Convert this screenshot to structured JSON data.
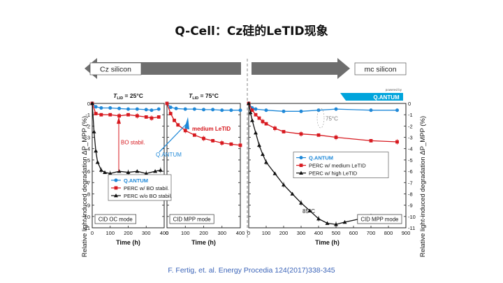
{
  "slide": {
    "title": "Q-Cell：Cz硅的LeTID现象",
    "citation": "F. Fertig, et. al. Energy Procedia 124(2017)338-345"
  },
  "figure": {
    "arrow_left_label": "Cz silicon",
    "arrow_right_label": "mc silicon",
    "logo": {
      "top_text": "powered by",
      "brand": "Q.ANTUM"
    },
    "ylabel": "Relative light-induced degradation ΔP_MPP (%)",
    "colors": {
      "qantum": "#1e88d8",
      "perc": "#d7191f",
      "black": "#111111",
      "arrow_gray": "#6e6e6e"
    }
  },
  "chart_data": [
    {
      "type": "line",
      "panel": "left",
      "condition_label": "T_LID = 25°C",
      "mode_label": "CID OC mode",
      "xlabel": "Time (h)",
      "xlim": [
        0,
        400
      ],
      "ylim": [
        -11,
        0
      ],
      "xticks": [
        0,
        100,
        200,
        300,
        400
      ],
      "yticks": [
        0,
        -1,
        -2,
        -3,
        -4,
        -5,
        -6,
        -7,
        -8,
        -9,
        -10,
        -11
      ],
      "legend": [
        "Q.ANTUM",
        "PERC w/  BO stabil.",
        "PERC w/o BO stabil."
      ],
      "annotations": [
        {
          "text": "BO stabil."
        }
      ],
      "series": [
        {
          "name": "Q.ANTUM",
          "marker": "circle",
          "color": "#1e88d8",
          "x": [
            0,
            20,
            50,
            100,
            150,
            200,
            250,
            300,
            330,
            370
          ],
          "y": [
            0,
            -0.3,
            -0.4,
            -0.4,
            -0.45,
            -0.5,
            -0.5,
            -0.55,
            -0.6,
            -0.5
          ]
        },
        {
          "name": "PERC w/  BO stabil.",
          "marker": "square",
          "color": "#d7191f",
          "x": [
            0,
            20,
            50,
            100,
            150,
            200,
            250,
            300,
            330,
            370
          ],
          "y": [
            0,
            -0.9,
            -1.0,
            -1.0,
            -1.1,
            -1.0,
            -1.1,
            -1.2,
            -1.3,
            -1.2
          ]
        },
        {
          "name": "PERC w/o BO stabil.",
          "marker": "triangle",
          "color": "#111111",
          "x": [
            0,
            10,
            20,
            30,
            50,
            70,
            100,
            150,
            200,
            250,
            300,
            350,
            380
          ],
          "y": [
            0,
            -2.5,
            -4.2,
            -5.2,
            -5.9,
            -6.1,
            -6.2,
            -6.0,
            -6.1,
            -6.0,
            -6.2,
            -6.0,
            -5.9
          ]
        }
      ]
    },
    {
      "type": "line",
      "panel": "middle",
      "condition_label": "T_LID = 75°C",
      "mode_label": "CID MPP mode",
      "xlabel": "Time (h)",
      "xlim": [
        0,
        400
      ],
      "ylim": [
        -11,
        0
      ],
      "xticks": [
        0,
        100,
        200,
        300,
        400
      ],
      "annotations": [
        {
          "text": "medium LeTID"
        },
        {
          "text": "Q.ANTUM"
        }
      ],
      "series": [
        {
          "name": "Q.ANTUM",
          "marker": "circle",
          "color": "#1e88d8",
          "x": [
            0,
            20,
            50,
            100,
            150,
            200,
            250,
            300,
            350,
            400
          ],
          "y": [
            0,
            -0.35,
            -0.45,
            -0.5,
            -0.5,
            -0.55,
            -0.55,
            -0.6,
            -0.6,
            -0.6
          ]
        },
        {
          "name": "PERC w/ medium LeTID",
          "marker": "square",
          "color": "#d7191f",
          "x": [
            0,
            20,
            40,
            60,
            100,
            150,
            200,
            250,
            300,
            350,
            400
          ],
          "y": [
            0,
            -0.9,
            -1.5,
            -1.9,
            -2.4,
            -2.8,
            -3.1,
            -3.3,
            -3.5,
            -3.6,
            -3.7
          ]
        }
      ]
    },
    {
      "type": "line",
      "panel": "right",
      "mode_label": "CID MPP mode",
      "xlabel": "Time (h)",
      "xlim": [
        0,
        900
      ],
      "ylim": [
        -11,
        0
      ],
      "xticks": [
        0,
        100,
        200,
        300,
        400,
        500,
        600,
        700,
        800,
        900
      ],
      "y2ticks": [
        0,
        -1,
        -2,
        -3,
        -4,
        -5,
        -6,
        -7,
        -8,
        -9,
        -10,
        -11
      ],
      "legend": [
        "Q.ANTUM",
        "PERC w/ medium LeTID",
        "PERC w/ high LeTID"
      ],
      "annotations": [
        {
          "text": "75°C"
        },
        {
          "text": "85°C"
        }
      ],
      "series": [
        {
          "name": "Q.ANTUM",
          "marker": "circle",
          "color": "#1e88d8",
          "x": [
            0,
            20,
            40,
            100,
            200,
            300,
            400,
            500,
            700,
            850
          ],
          "y": [
            0,
            -0.4,
            -0.5,
            -0.6,
            -0.7,
            -0.7,
            -0.6,
            -0.5,
            -0.6,
            -0.6
          ]
        },
        {
          "name": "PERC w/ medium LeTID",
          "marker": "square",
          "color": "#d7191f",
          "x": [
            0,
            20,
            40,
            60,
            80,
            100,
            150,
            200,
            300,
            400,
            500,
            700,
            850
          ],
          "y": [
            0,
            -0.6,
            -1.0,
            -1.3,
            -1.6,
            -1.8,
            -2.2,
            -2.5,
            -2.7,
            -2.8,
            -3.0,
            -3.3,
            -3.4
          ]
        },
        {
          "name": "PERC w/ high LeTID",
          "marker": "triangle",
          "color": "#111111",
          "x": [
            0,
            10,
            20,
            40,
            60,
            80,
            100,
            150,
            200,
            250,
            300,
            350,
            400,
            450,
            500,
            550,
            700
          ],
          "y": [
            0,
            -0.8,
            -1.5,
            -2.6,
            -3.7,
            -4.5,
            -5.2,
            -6.2,
            -7.2,
            -8.0,
            -8.8,
            -9.5,
            -10.2,
            -10.6,
            -10.7,
            -10.5,
            -10.0
          ]
        }
      ]
    }
  ]
}
